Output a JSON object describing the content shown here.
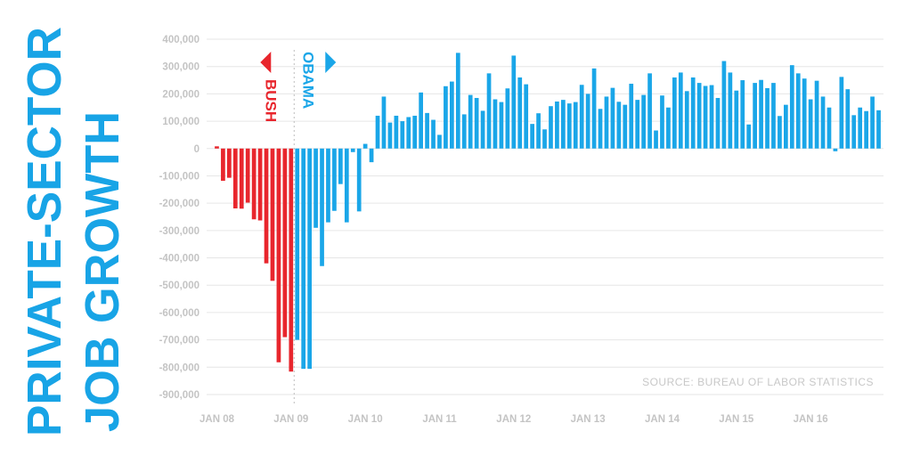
{
  "title_lines": [
    "PRIVATE-SECTOR",
    "JOB GROWTH"
  ],
  "source": "SOURCE: BUREAU OF LABOR STATISTICS",
  "colors": {
    "bush": "#e8262d",
    "obama": "#1aa6e8",
    "title": "#18a4e6",
    "grid": "#e6e6e6",
    "tick": "#c4c4c4"
  },
  "chart_data": {
    "type": "bar",
    "eras": [
      {
        "name": "BUSH",
        "direction": "left",
        "color": "#e8262d"
      },
      {
        "name": "OBAMA",
        "direction": "right",
        "color": "#1aa6e8"
      }
    ],
    "xlabels": [
      "JAN 08",
      "JAN 09",
      "JAN 10",
      "JAN 11",
      "JAN 12",
      "JAN 13",
      "JAN 14",
      "JAN 15",
      "JAN 16"
    ],
    "yticks": [
      400000,
      300000,
      200000,
      100000,
      0,
      -100000,
      -200000,
      -300000,
      -400000,
      -500000,
      -600000,
      -700000,
      -800000,
      -900000
    ],
    "ytick_labels": [
      "400,000",
      "300,000",
      "200,000",
      "100,000",
      "0",
      "-100,000",
      "-200,000",
      "-300,000",
      "-400,000",
      "-500,000",
      "-600,000",
      "-700,000",
      "-800,000",
      "-900,000"
    ],
    "ylim": [
      -900000,
      400000
    ],
    "grid": true,
    "start": "JAN 08",
    "bush_months": 13,
    "values": [
      8000,
      -118000,
      -107000,
      -219000,
      -220000,
      -198000,
      -259000,
      -263000,
      -420000,
      -484000,
      -782000,
      -690000,
      -816000,
      -700000,
      -806000,
      -806000,
      -290000,
      -430000,
      -270000,
      -228000,
      -130000,
      -270000,
      -13000,
      -230000,
      17000,
      -50000,
      120000,
      190000,
      95000,
      120000,
      100000,
      115000,
      120000,
      205000,
      130000,
      105000,
      50000,
      228000,
      245000,
      350000,
      125000,
      196000,
      185000,
      138000,
      275000,
      180000,
      170000,
      220000,
      340000,
      260000,
      235000,
      90000,
      129000,
      70000,
      155000,
      172000,
      178000,
      165000,
      170000,
      233000,
      200000,
      293000,
      145000,
      190000,
      222000,
      171000,
      160000,
      237000,
      178000,
      196000,
      275000,
      66000,
      194000,
      150000,
      260000,
      278000,
      210000,
      260000,
      240000,
      229000,
      232000,
      185000,
      320000,
      278000,
      212000,
      250000,
      88000,
      240000,
      251000,
      221000,
      240000,
      119000,
      160000,
      305000,
      275000,
      256000,
      180000,
      248000,
      190000,
      150000,
      -10000,
      262000,
      217000,
      122000,
      150000,
      137000,
      190000,
      140000
    ]
  }
}
